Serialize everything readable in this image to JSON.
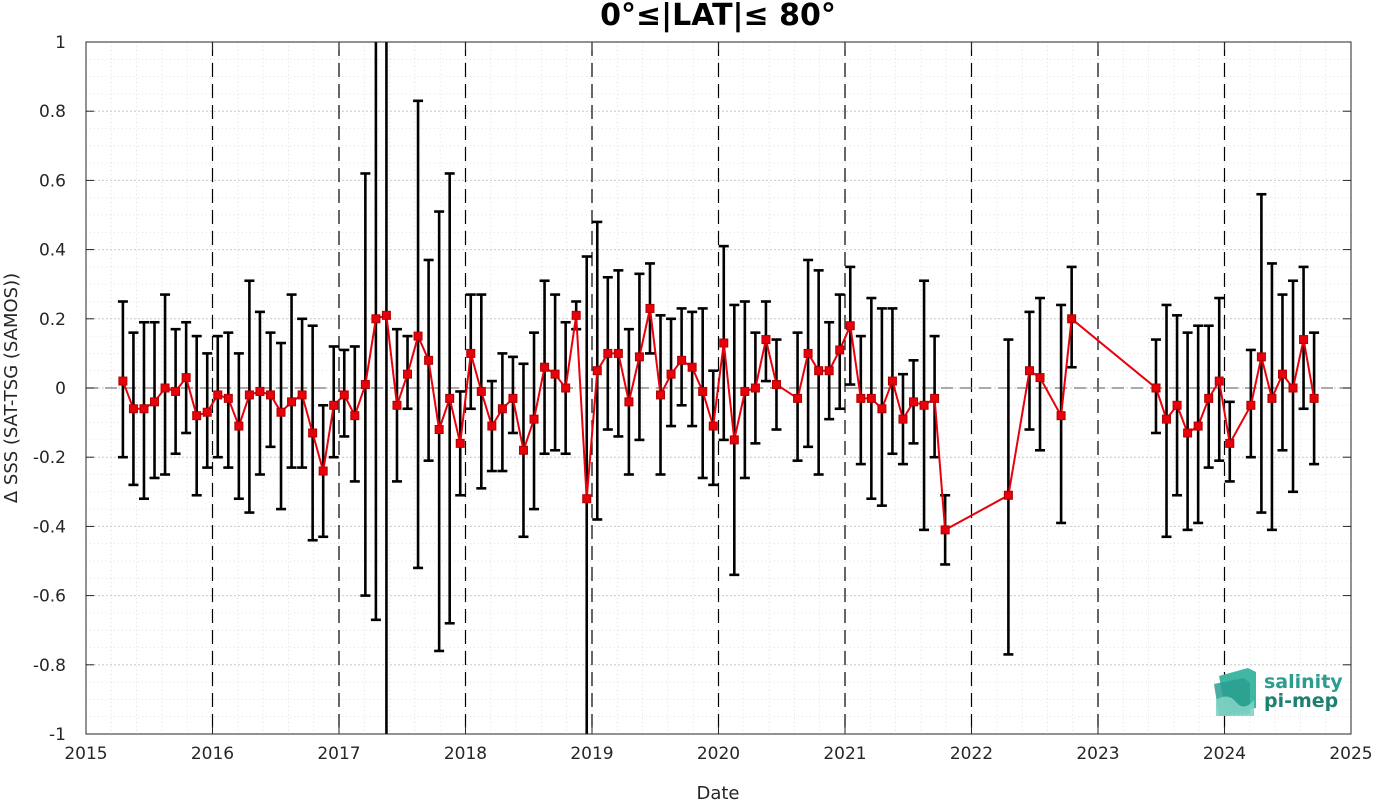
{
  "chart_data": {
    "type": "line",
    "title": "0°≤|LAT|≤ 80°",
    "xlabel": "Date",
    "ylabel": "Δ SSS (SAT-TSG (SAMOS))",
    "xlim": [
      "2015-01-01",
      "2025-01-01"
    ],
    "ylim": [
      -1,
      1
    ],
    "x_ticks": [
      "2015",
      "2016",
      "2017",
      "2018",
      "2019",
      "2020",
      "2021",
      "2022",
      "2023",
      "2024",
      "2025"
    ],
    "y_ticks": [
      "-1",
      "-0.8",
      "-0.6",
      "-0.4",
      "-0.2",
      "0",
      "0.2",
      "0.4",
      "0.6",
      "0.8",
      "1"
    ],
    "grid": "major and minor dotted",
    "reference_line": 0,
    "year_markers": [
      "2016",
      "2017",
      "2018",
      "2019",
      "2020",
      "2021",
      "2022",
      "2023",
      "2024"
    ],
    "line_color": "#e8000b",
    "errorbar_color": "#000000",
    "series": [
      {
        "x": [
          "2015-04",
          "2015-05",
          "2015-06",
          "2015-07",
          "2015-08",
          "2015-09",
          "2015-10",
          "2015-11",
          "2015-12",
          "2016-01",
          "2016-02",
          "2016-03",
          "2016-04",
          "2016-05",
          "2016-06",
          "2016-07",
          "2016-08",
          "2016-09",
          "2016-10",
          "2016-11",
          "2016-12",
          "2017-01",
          "2017-02",
          "2017-03",
          "2017-04",
          "2017-05",
          "2017-06",
          "2017-07",
          "2017-08",
          "2017-09",
          "2017-10",
          "2017-11",
          "2017-12",
          "2018-01",
          "2018-02",
          "2018-03",
          "2018-04",
          "2018-05",
          "2018-06",
          "2018-07",
          "2018-08",
          "2018-09",
          "2018-10",
          "2018-11",
          "2018-12",
          "2019-01",
          "2019-02",
          "2019-03",
          "2019-04",
          "2019-05",
          "2019-06",
          "2019-07",
          "2019-08",
          "2019-09",
          "2019-10",
          "2019-11",
          "2019-12",
          "2020-01",
          "2020-02",
          "2020-03",
          "2020-04",
          "2020-05",
          "2020-06",
          "2020-08",
          "2020-09",
          "2020-10",
          "2020-11",
          "2020-12",
          "2021-01",
          "2021-02",
          "2021-03",
          "2021-04",
          "2021-05",
          "2021-06",
          "2021-07",
          "2021-08",
          "2021-09",
          "2021-10",
          "2022-04",
          "2022-06",
          "2022-07",
          "2022-09",
          "2022-10",
          "2023-06",
          "2023-07",
          "2023-08",
          "2023-09",
          "2023-10",
          "2023-11",
          "2023-12",
          "2024-01",
          "2024-03",
          "2024-04",
          "2024-05",
          "2024-06",
          "2024-07",
          "2024-08",
          "2024-09"
        ],
        "y": [
          0.02,
          -0.06,
          -0.06,
          -0.04,
          0.0,
          -0.01,
          0.03,
          -0.08,
          -0.07,
          -0.02,
          -0.03,
          -0.11,
          -0.02,
          -0.01,
          -0.02,
          -0.07,
          -0.04,
          -0.02,
          -0.13,
          -0.24,
          -0.05,
          -0.02,
          -0.08,
          0.01,
          0.2,
          0.21,
          -0.05,
          0.04,
          0.15,
          0.08,
          -0.12,
          -0.03,
          -0.16,
          0.1,
          -0.01,
          -0.11,
          -0.06,
          -0.03,
          -0.18,
          -0.09,
          0.06,
          0.04,
          0.0,
          0.21,
          -0.32,
          0.05,
          0.1,
          0.1,
          -0.04,
          0.09,
          0.23,
          -0.02,
          0.04,
          0.08,
          0.06,
          -0.01,
          -0.11,
          0.13,
          -0.15,
          -0.01,
          0.0,
          0.14,
          0.01,
          -0.03,
          0.1,
          0.05,
          0.05,
          0.11,
          0.18,
          -0.03,
          -0.03,
          -0.06,
          0.02,
          -0.09,
          -0.04,
          -0.05,
          -0.03,
          -0.41,
          -0.31,
          0.05,
          0.03,
          -0.08,
          0.2,
          0.0,
          -0.09,
          -0.05,
          -0.13,
          -0.11,
          -0.03,
          0.02,
          -0.16,
          -0.05,
          0.09,
          -0.03,
          0.04,
          0.0,
          0.14,
          -0.03
        ],
        "y_low": [
          -0.2,
          -0.28,
          -0.32,
          -0.26,
          -0.25,
          -0.19,
          -0.13,
          -0.31,
          -0.23,
          -0.2,
          -0.23,
          -0.32,
          -0.36,
          -0.25,
          -0.17,
          -0.35,
          -0.23,
          -0.23,
          -0.44,
          -0.43,
          -0.2,
          -0.14,
          -0.27,
          -0.6,
          -0.67,
          -1.0,
          -0.27,
          -0.06,
          -0.52,
          -0.21,
          -0.76,
          -0.68,
          -0.31,
          -0.06,
          -0.29,
          -0.24,
          -0.24,
          -0.13,
          -0.43,
          -0.35,
          -0.19,
          -0.18,
          -0.19,
          0.17,
          -1.0,
          -0.38,
          -0.12,
          -0.14,
          -0.25,
          -0.15,
          0.1,
          -0.25,
          -0.11,
          -0.05,
          -0.11,
          -0.26,
          -0.28,
          -0.15,
          -0.54,
          -0.26,
          -0.16,
          0.02,
          -0.12,
          -0.21,
          -0.17,
          -0.25,
          -0.09,
          -0.06,
          0.01,
          -0.22,
          -0.32,
          -0.34,
          -0.19,
          -0.22,
          -0.16,
          -0.41,
          -0.2,
          -0.51,
          -0.77,
          -0.12,
          -0.18,
          -0.39,
          0.06,
          -0.13,
          -0.43,
          -0.31,
          -0.41,
          -0.39,
          -0.23,
          -0.21,
          -0.27,
          -0.2,
          -0.36,
          -0.41,
          -0.18,
          -0.3,
          -0.06,
          -0.22
        ],
        "y_high": [
          0.25,
          0.16,
          0.19,
          0.19,
          0.27,
          0.17,
          0.19,
          0.15,
          0.1,
          0.15,
          0.16,
          0.1,
          0.31,
          0.22,
          0.16,
          0.13,
          0.27,
          0.2,
          0.18,
          -0.05,
          0.12,
          0.11,
          0.12,
          0.62,
          1.0,
          1.0,
          0.17,
          0.15,
          0.83,
          0.37,
          0.51,
          0.62,
          -0.01,
          0.27,
          0.27,
          0.02,
          0.1,
          0.09,
          0.07,
          0.16,
          0.31,
          0.27,
          0.19,
          0.25,
          0.38,
          0.48,
          0.32,
          0.34,
          0.17,
          0.33,
          0.36,
          0.21,
          0.2,
          0.23,
          0.22,
          0.23,
          0.05,
          0.41,
          0.24,
          0.25,
          0.16,
          0.25,
          0.14,
          0.16,
          0.37,
          0.34,
          0.19,
          0.27,
          0.35,
          0.15,
          0.26,
          0.23,
          0.23,
          0.04,
          0.08,
          0.31,
          0.15,
          -0.31,
          0.14,
          0.22,
          0.26,
          0.24,
          0.35,
          0.14,
          0.24,
          0.21,
          0.16,
          0.18,
          0.18,
          0.26,
          -0.04,
          0.11,
          0.56,
          0.36,
          0.27,
          0.31,
          0.35,
          0.16
        ]
      }
    ]
  },
  "logo": {
    "line1": "salinity",
    "line2": "pi-mep",
    "color": "#2a9d8f"
  }
}
